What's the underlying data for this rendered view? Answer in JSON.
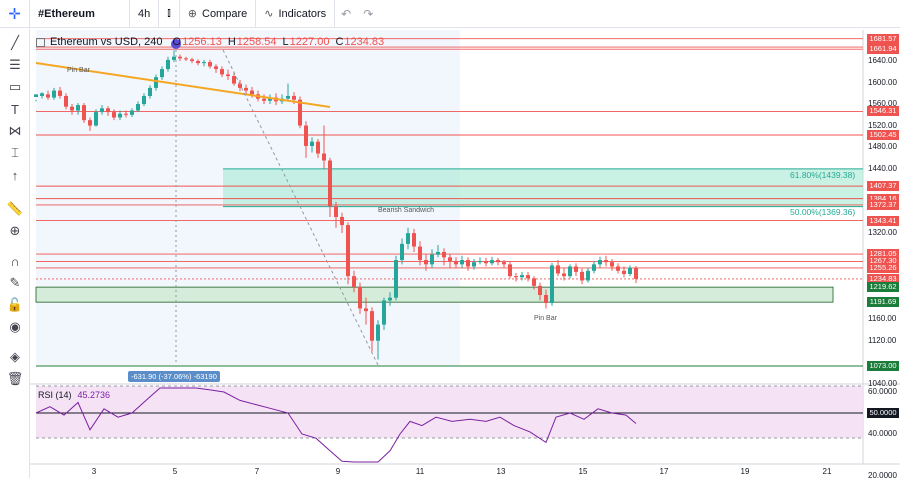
{
  "toolbar": {
    "symbol": "#Ethereum",
    "interval": "4h",
    "compare_label": "Compare",
    "indicators_label": "Indicators"
  },
  "legend": {
    "symbol": "Ethereum vs USD, 240",
    "open_label": "O",
    "open": "1256.13",
    "high_label": "H",
    "high": "1258.54",
    "low_label": "L",
    "low": "1227.00",
    "close_label": "C",
    "close": "1234.83"
  },
  "rsi": {
    "label": "RSI (14)",
    "value": "45.2736"
  },
  "annotations": {
    "pin_bar_top": "Pin Bar",
    "pin_bar_bottom": "Pin Bar",
    "bearish_sandwich": "Bearish Sandwich",
    "fib_618": "61.80%(1439.38)",
    "fib_50": "50.00%(1369.36)",
    "measure": "-631.90 (-37.06%) -63190"
  },
  "price_axis": [
    "1640.00",
    "1600.00",
    "1560.00",
    "1520.00",
    "1480.00",
    "1440.00",
    "1320.00",
    "1160.00",
    "1120.00",
    "1040.00"
  ],
  "price_tags": [
    {
      "value": "1681.57",
      "style": "red"
    },
    {
      "value": "1665.84",
      "style": "red"
    },
    {
      "value": "1661.94",
      "style": "red"
    },
    {
      "value": "1546.31",
      "style": "red"
    },
    {
      "value": "1502.45",
      "style": "red"
    },
    {
      "value": "1407.37",
      "style": "red"
    },
    {
      "value": "1384.16",
      "style": "red"
    },
    {
      "value": "1372.37",
      "style": "red"
    },
    {
      "value": "1343.41",
      "style": "red"
    },
    {
      "value": "1281.05",
      "style": "red"
    },
    {
      "value": "1267.30",
      "style": "red"
    },
    {
      "value": "1255.26",
      "style": "red"
    },
    {
      "value": "1234.83",
      "style": "red"
    },
    {
      "value": "1219.62",
      "style": "green"
    },
    {
      "value": "1191.69",
      "style": "green"
    },
    {
      "value": "1073.00",
      "style": "green"
    }
  ],
  "rsi_axis": [
    "60.0000",
    "40.0000",
    "20.0000"
  ],
  "rsi_tag": "50.0000",
  "x_axis": [
    "3",
    "5",
    "7",
    "9",
    "11",
    "13",
    "15",
    "17",
    "19",
    "21"
  ],
  "colors": {
    "up": "#26a69a",
    "down": "#ef5350",
    "rsi": "#7b1fa2",
    "zone": "#b2dfdb"
  }
}
